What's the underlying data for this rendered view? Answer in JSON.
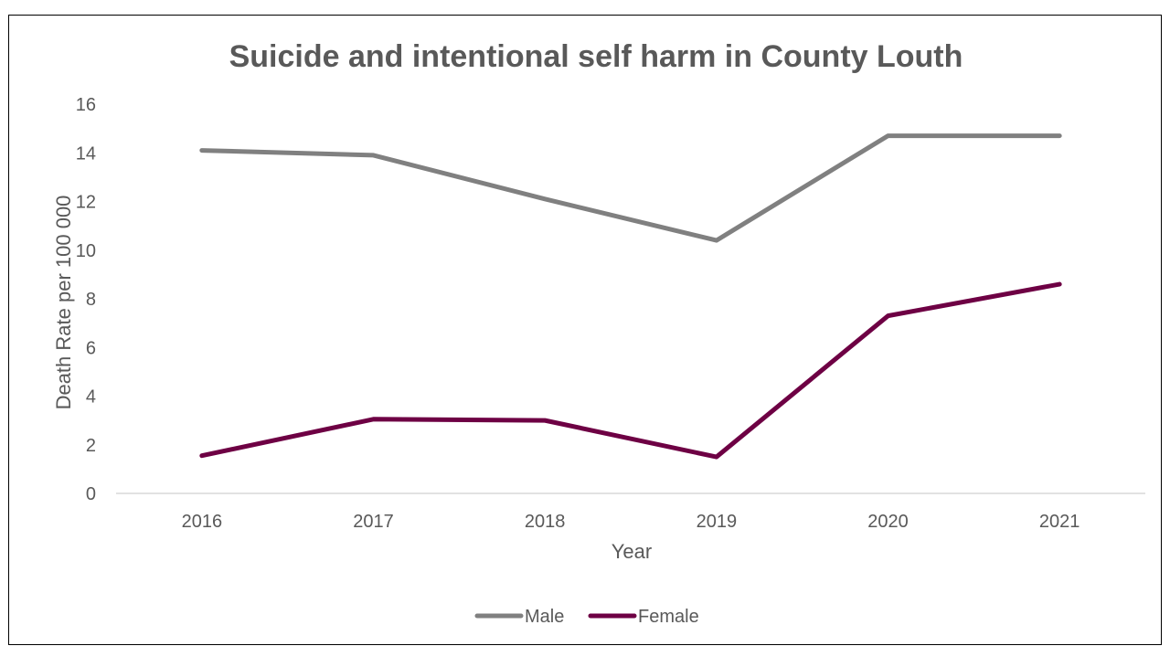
{
  "chart_data": {
    "type": "line",
    "title": "Suicide and intentional self harm in County Louth",
    "xlabel": "Year",
    "ylabel": "Death Rate per 100 000",
    "categories": [
      "2016",
      "2017",
      "2018",
      "2019",
      "2020",
      "2021"
    ],
    "ylim": [
      0,
      16
    ],
    "yticks": [
      "0",
      "2",
      "4",
      "6",
      "8",
      "10",
      "12",
      "14",
      "16"
    ],
    "grid": false,
    "legend_position": "bottom",
    "series": [
      {
        "name": "Male",
        "color": "#808080",
        "values": [
          14.1,
          13.9,
          12.1,
          10.4,
          14.7,
          14.7
        ]
      },
      {
        "name": "Female",
        "color": "#6E0044",
        "values": [
          1.55,
          3.05,
          3.0,
          1.5,
          7.3,
          8.6
        ]
      }
    ]
  }
}
